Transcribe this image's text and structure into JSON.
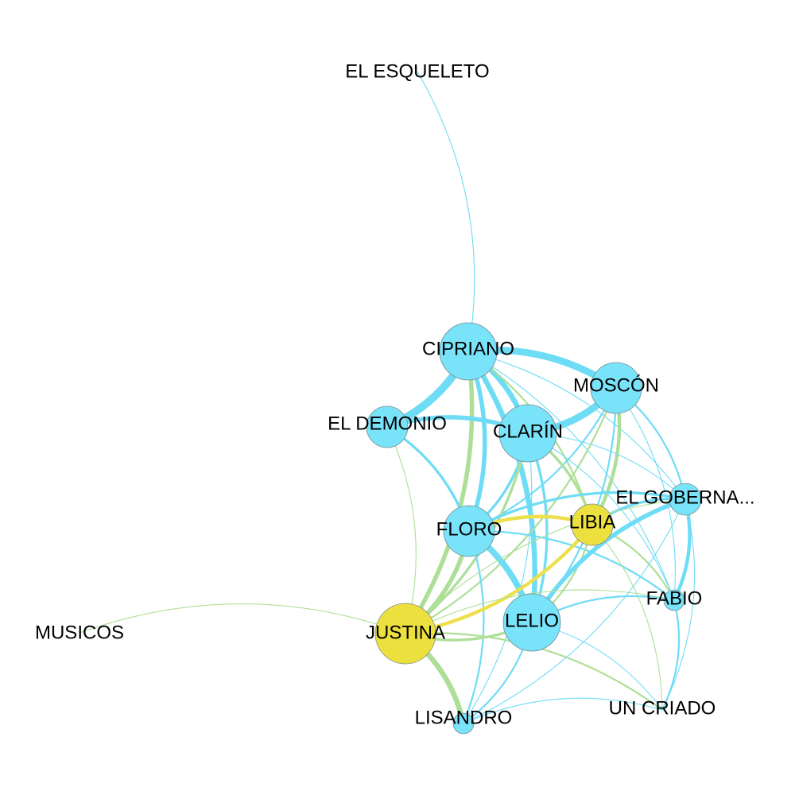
{
  "colors": {
    "blue_node": "#79e3fa",
    "yellow_node": "#ece03f",
    "blue_edge": "#6fdcf6",
    "green_edge": "#aedf98",
    "yellow_edge": "#ede04c"
  },
  "nodes": [
    {
      "id": "el-esqueleto",
      "label": "EL ESQUELETO",
      "color": "blue_node",
      "size": 0
    },
    {
      "id": "cipriano",
      "label": "CIPRIANO",
      "color": "blue_node",
      "size": 5
    },
    {
      "id": "moscon",
      "label": "MOSCÓN",
      "color": "blue_node",
      "size": 4
    },
    {
      "id": "el-demonio",
      "label": "EL DEMONIO",
      "color": "blue_node",
      "size": 3
    },
    {
      "id": "clarin",
      "label": "CLARÍN",
      "color": "blue_node",
      "size": 5
    },
    {
      "id": "el-gobernador",
      "label": "EL GOBERNA...",
      "color": "blue_node",
      "size": 2
    },
    {
      "id": "libia",
      "label": "LIBIA",
      "color": "yellow_node",
      "size": 3
    },
    {
      "id": "floro",
      "label": "FLORO",
      "color": "blue_node",
      "size": 4
    },
    {
      "id": "fabio",
      "label": "FABIO",
      "color": "blue_node",
      "size": 1
    },
    {
      "id": "musicos",
      "label": "MUSICOS",
      "color": "blue_node",
      "size": 0
    },
    {
      "id": "justina",
      "label": "JUSTINA",
      "color": "yellow_node",
      "size": 6
    },
    {
      "id": "lelio",
      "label": "LELIO",
      "color": "blue_node",
      "size": 5
    },
    {
      "id": "lisandro",
      "label": "LISANDRO",
      "color": "blue_node",
      "size": 1
    },
    {
      "id": "un-criado",
      "label": "UN CRIADO",
      "color": "blue_node",
      "size": 0
    }
  ],
  "edges": [
    {
      "source": "el-esqueleto",
      "target": "cipriano",
      "color": "blue_edge",
      "weight": 1
    },
    {
      "source": "musicos",
      "target": "justina",
      "color": "green_edge",
      "weight": 1
    },
    {
      "source": "cipriano",
      "target": "moscon",
      "color": "blue_edge",
      "weight": 8
    },
    {
      "source": "cipriano",
      "target": "clarin",
      "color": "blue_edge",
      "weight": 6
    },
    {
      "source": "cipriano",
      "target": "el-demonio",
      "color": "blue_edge",
      "weight": 9
    },
    {
      "source": "cipriano",
      "target": "floro",
      "color": "blue_edge",
      "weight": 5
    },
    {
      "source": "cipriano",
      "target": "lelio",
      "color": "blue_edge",
      "weight": 6
    },
    {
      "source": "cipriano",
      "target": "justina",
      "color": "green_edge",
      "weight": 5
    },
    {
      "source": "cipriano",
      "target": "libia",
      "color": "green_edge",
      "weight": 2
    },
    {
      "source": "cipriano",
      "target": "el-gobernador",
      "color": "blue_edge",
      "weight": 1
    },
    {
      "source": "cipriano",
      "target": "fabio",
      "color": "blue_edge",
      "weight": 1
    },
    {
      "source": "moscon",
      "target": "clarin",
      "color": "blue_edge",
      "weight": 8
    },
    {
      "source": "moscon",
      "target": "libia",
      "color": "green_edge",
      "weight": 4
    },
    {
      "source": "moscon",
      "target": "floro",
      "color": "blue_edge",
      "weight": 2
    },
    {
      "source": "moscon",
      "target": "lelio",
      "color": "blue_edge",
      "weight": 2
    },
    {
      "source": "moscon",
      "target": "el-gobernador",
      "color": "blue_edge",
      "weight": 2
    },
    {
      "source": "moscon",
      "target": "fabio",
      "color": "blue_edge",
      "weight": 1
    },
    {
      "source": "moscon",
      "target": "justina",
      "color": "green_edge",
      "weight": 2
    },
    {
      "source": "el-demonio",
      "target": "clarin",
      "color": "blue_edge",
      "weight": 5
    },
    {
      "source": "el-demonio",
      "target": "floro",
      "color": "blue_edge",
      "weight": 3
    },
    {
      "source": "el-demonio",
      "target": "justina",
      "color": "green_edge",
      "weight": 1
    },
    {
      "source": "clarin",
      "target": "floro",
      "color": "blue_edge",
      "weight": 3
    },
    {
      "source": "clarin",
      "target": "lelio",
      "color": "blue_edge",
      "weight": 3
    },
    {
      "source": "clarin",
      "target": "libia",
      "color": "green_edge",
      "weight": 3
    },
    {
      "source": "clarin",
      "target": "justina",
      "color": "green_edge",
      "weight": 3
    },
    {
      "source": "clarin",
      "target": "el-gobernador",
      "color": "blue_edge",
      "weight": 1
    },
    {
      "source": "clarin",
      "target": "fabio",
      "color": "blue_edge",
      "weight": 1
    },
    {
      "source": "clarin",
      "target": "lisandro",
      "color": "blue_edge",
      "weight": 1
    },
    {
      "source": "floro",
      "target": "libia",
      "color": "yellow_edge",
      "weight": 4
    },
    {
      "source": "floro",
      "target": "lelio",
      "color": "blue_edge",
      "weight": 7
    },
    {
      "source": "floro",
      "target": "justina",
      "color": "green_edge",
      "weight": 5
    },
    {
      "source": "floro",
      "target": "el-gobernador",
      "color": "blue_edge",
      "weight": 3
    },
    {
      "source": "floro",
      "target": "fabio",
      "color": "blue_edge",
      "weight": 2
    },
    {
      "source": "floro",
      "target": "lisandro",
      "color": "blue_edge",
      "weight": 2
    },
    {
      "source": "libia",
      "target": "justina",
      "color": "yellow_edge",
      "weight": 4
    },
    {
      "source": "libia",
      "target": "lelio",
      "color": "green_edge",
      "weight": 2
    },
    {
      "source": "libia",
      "target": "el-gobernador",
      "color": "blue_edge",
      "weight": 3
    },
    {
      "source": "libia",
      "target": "fabio",
      "color": "green_edge",
      "weight": 2
    },
    {
      "source": "libia",
      "target": "un-criado",
      "color": "green_edge",
      "weight": 1
    },
    {
      "source": "lelio",
      "target": "justina",
      "color": "green_edge",
      "weight": 3
    },
    {
      "source": "lelio",
      "target": "el-gobernador",
      "color": "blue_edge",
      "weight": 5
    },
    {
      "source": "lelio",
      "target": "fabio",
      "color": "blue_edge",
      "weight": 2
    },
    {
      "source": "lelio",
      "target": "lisandro",
      "color": "blue_edge",
      "weight": 2
    },
    {
      "source": "lelio",
      "target": "un-criado",
      "color": "blue_edge",
      "weight": 1
    },
    {
      "source": "justina",
      "target": "lisandro",
      "color": "green_edge",
      "weight": 6
    },
    {
      "source": "justina",
      "target": "fabio",
      "color": "green_edge",
      "weight": 1
    },
    {
      "source": "justina",
      "target": "el-gobernador",
      "color": "green_edge",
      "weight": 1
    },
    {
      "source": "justina",
      "target": "un-criado",
      "color": "green_edge",
      "weight": 2
    },
    {
      "source": "el-gobernador",
      "target": "fabio",
      "color": "blue_edge",
      "weight": 4
    },
    {
      "source": "el-gobernador",
      "target": "un-criado",
      "color": "blue_edge",
      "weight": 1
    },
    {
      "source": "el-gobernador",
      "target": "lisandro",
      "color": "blue_edge",
      "weight": 1
    },
    {
      "source": "fabio",
      "target": "un-criado",
      "color": "blue_edge",
      "weight": 2
    },
    {
      "source": "lisandro",
      "target": "un-criado",
      "color": "blue_edge",
      "weight": 1
    }
  ]
}
